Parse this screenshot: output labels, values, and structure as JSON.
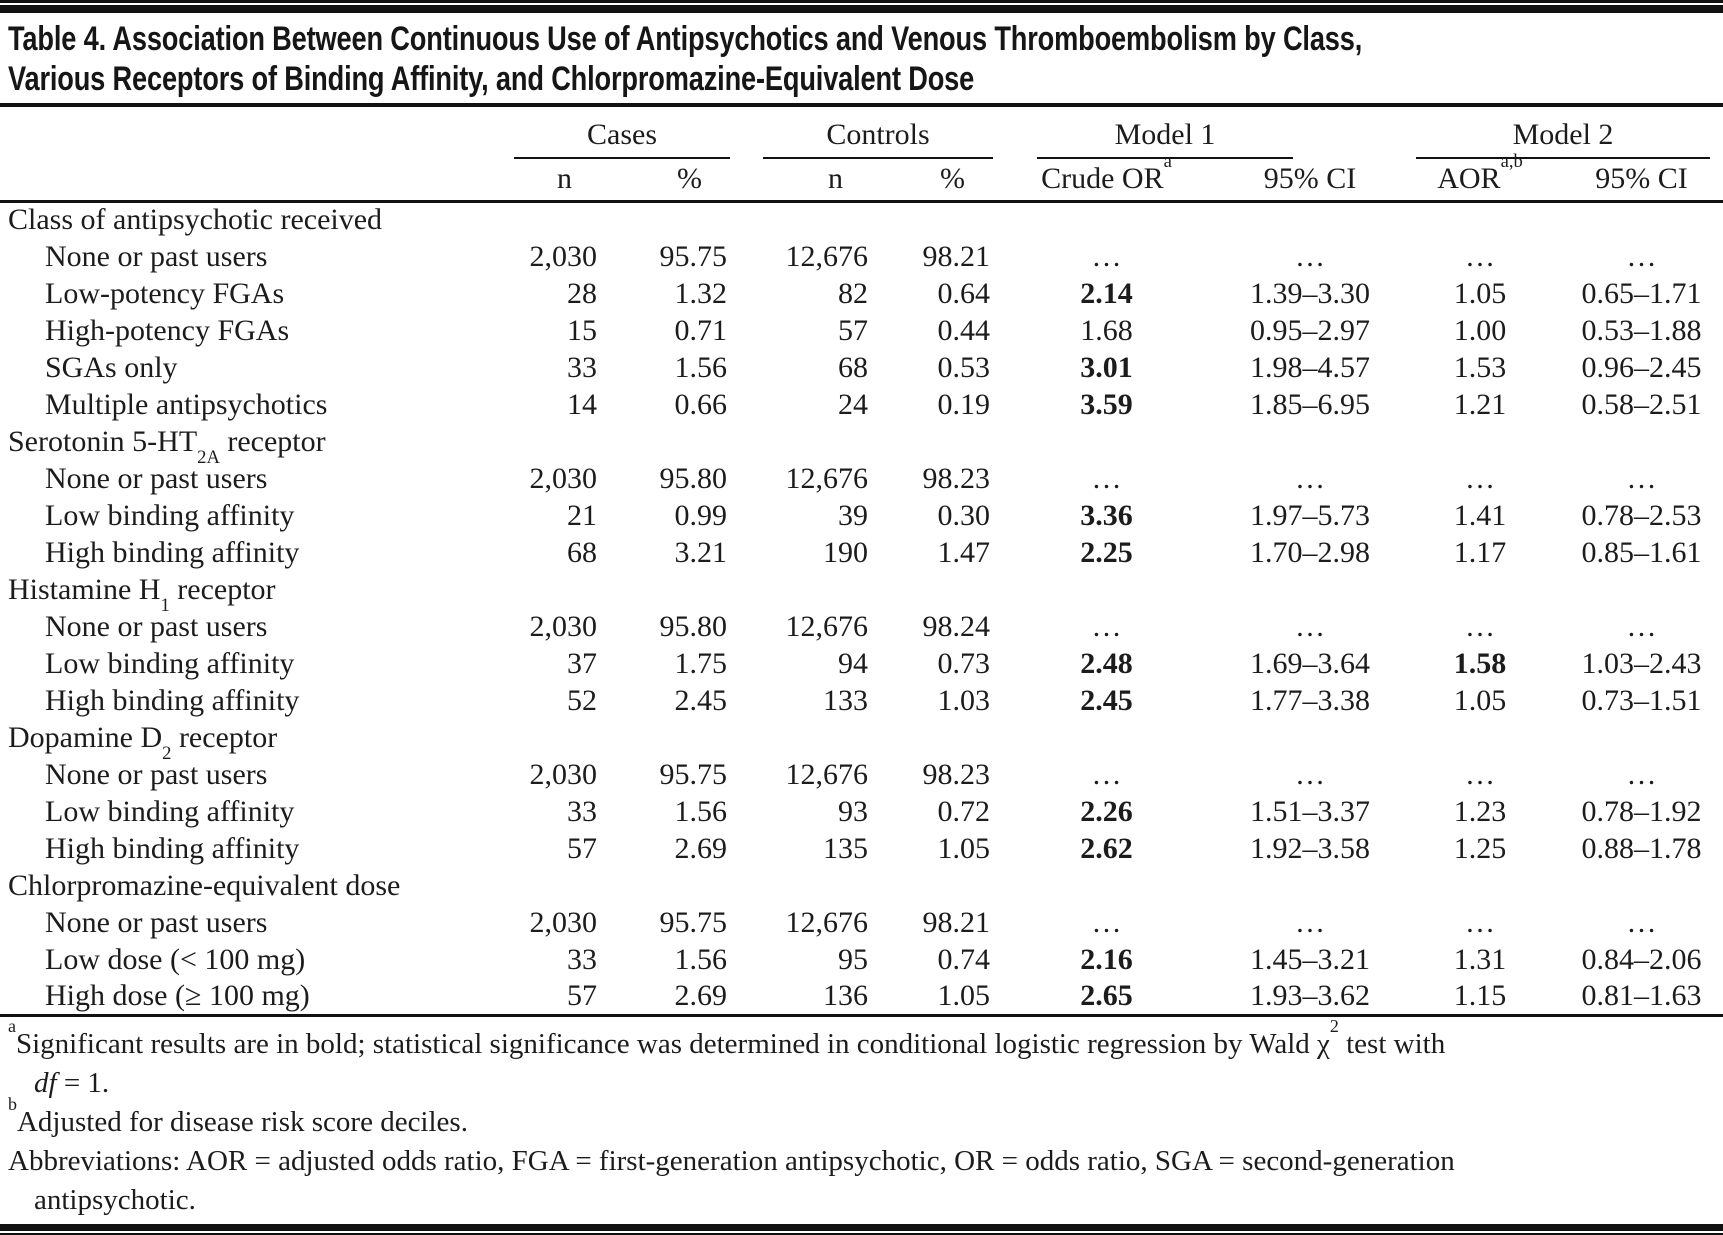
{
  "title": {
    "line1": "Table 4. Association Between Continuous Use of Antipsychotics and Venous Thromboembolism by Class,",
    "line2": "Various Receptors of Binding Affinity, and Chlorpromazine-Equivalent Dose"
  },
  "table": {
    "col_groups": [
      {
        "label": "Cases",
        "cols": [
          "n",
          "%"
        ]
      },
      {
        "label": "Controls",
        "cols": [
          "n",
          "%"
        ]
      },
      {
        "label": "Model 1",
        "cols": [
          "Crude OR^{a}",
          "95% CI"
        ]
      },
      {
        "label": "Model 2",
        "cols": [
          "AOR^{a,b}",
          "95% CI"
        ]
      }
    ],
    "sections": [
      {
        "header": "Class of antipsychotic received",
        "rows": [
          {
            "label": "None or past users",
            "cells": [
              "2,030",
              "95.75",
              "12,676",
              "98.21",
              "…",
              "…",
              "…",
              "…"
            ]
          },
          {
            "label": "Low-potency FGAs",
            "cells": [
              "28",
              "1.32",
              "82",
              "0.64",
              "**2.14**",
              "1.39–3.30",
              "1.05",
              "0.65–1.71"
            ]
          },
          {
            "label": "High-potency FGAs",
            "cells": [
              "15",
              "0.71",
              "57",
              "0.44",
              "1.68",
              "0.95–2.97",
              "1.00",
              "0.53–1.88"
            ]
          },
          {
            "label": "SGAs only",
            "cells": [
              "33",
              "1.56",
              "68",
              "0.53",
              "**3.01**",
              "1.98–4.57",
              "1.53",
              "0.96–2.45"
            ]
          },
          {
            "label": "Multiple antipsychotics",
            "cells": [
              "14",
              "0.66",
              "24",
              "0.19",
              "**3.59**",
              "1.85–6.95",
              "1.21",
              "0.58–2.51"
            ]
          }
        ]
      },
      {
        "header": "Serotonin 5-HT_{2A} receptor",
        "rows": [
          {
            "label": "None or past users",
            "cells": [
              "2,030",
              "95.80",
              "12,676",
              "98.23",
              "…",
              "…",
              "…",
              "…"
            ]
          },
          {
            "label": "Low binding affinity",
            "cells": [
              "21",
              "0.99",
              "39",
              "0.30",
              "**3.36**",
              "1.97–5.73",
              "1.41",
              "0.78–2.53"
            ]
          },
          {
            "label": "High binding affinity",
            "cells": [
              "68",
              "3.21",
              "190",
              "1.47",
              "**2.25**",
              "1.70–2.98",
              "1.17",
              "0.85–1.61"
            ]
          }
        ]
      },
      {
        "header": "Histamine H_{1} receptor",
        "rows": [
          {
            "label": "None or past users",
            "cells": [
              "2,030",
              "95.80",
              "12,676",
              "98.24",
              "…",
              "…",
              "…",
              "…"
            ]
          },
          {
            "label": "Low binding affinity",
            "cells": [
              "37",
              "1.75",
              "94",
              "0.73",
              "**2.48**",
              "1.69–3.64",
              "**1.58**",
              "1.03–2.43"
            ]
          },
          {
            "label": "High binding affinity",
            "cells": [
              "52",
              "2.45",
              "133",
              "1.03",
              "**2.45**",
              "1.77–3.38",
              "1.05",
              "0.73–1.51"
            ]
          }
        ]
      },
      {
        "header": "Dopamine D_{2} receptor",
        "rows": [
          {
            "label": "None or past users",
            "cells": [
              "2,030",
              "95.75",
              "12,676",
              "98.23",
              "…",
              "…",
              "…",
              "…"
            ]
          },
          {
            "label": "Low binding affinity",
            "cells": [
              "33",
              "1.56",
              "93",
              "0.72",
              "**2.26**",
              "1.51–3.37",
              "1.23",
              "0.78–1.92"
            ]
          },
          {
            "label": "High binding affinity",
            "cells": [
              "57",
              "2.69",
              "135",
              "1.05",
              "**2.62**",
              "1.92–3.58",
              "1.25",
              "0.88–1.78"
            ]
          }
        ]
      },
      {
        "header": "Chlorpromazine-equivalent dose",
        "rows": [
          {
            "label": "None or past users",
            "cells": [
              "2,030",
              "95.75",
              "12,676",
              "98.21",
              "…",
              "…",
              "…",
              "…"
            ]
          },
          {
            "label": "Low dose (< 100 mg)",
            "cells": [
              "33",
              "1.56",
              "95",
              "0.74",
              "**2.16**",
              "1.45–3.21",
              "1.31",
              "0.84–2.06"
            ]
          },
          {
            "label": "High dose (≥ 100 mg)",
            "cells": [
              "57",
              "2.69",
              "136",
              "1.05",
              "**2.65**",
              "1.93–3.62",
              "1.15",
              "0.81–1.63"
            ]
          }
        ]
      }
    ]
  },
  "footnotes": [
    {
      "text": "^{a}Significant results are in bold; statistical significance was determined in conditional logistic regression by Wald χ^{2} test with",
      "indent": false
    },
    {
      "text": "*df* = 1.",
      "indent": true
    },
    {
      "text": "^{b}Adjusted for disease risk score deciles.",
      "indent": false
    },
    {
      "text": "Abbreviations: AOR = adjusted odds ratio, FGA = first-generation antipsychotic, OR = odds ratio, SGA = second-generation",
      "indent": false
    },
    {
      "text": "antipsychotic.",
      "indent": true
    }
  ]
}
